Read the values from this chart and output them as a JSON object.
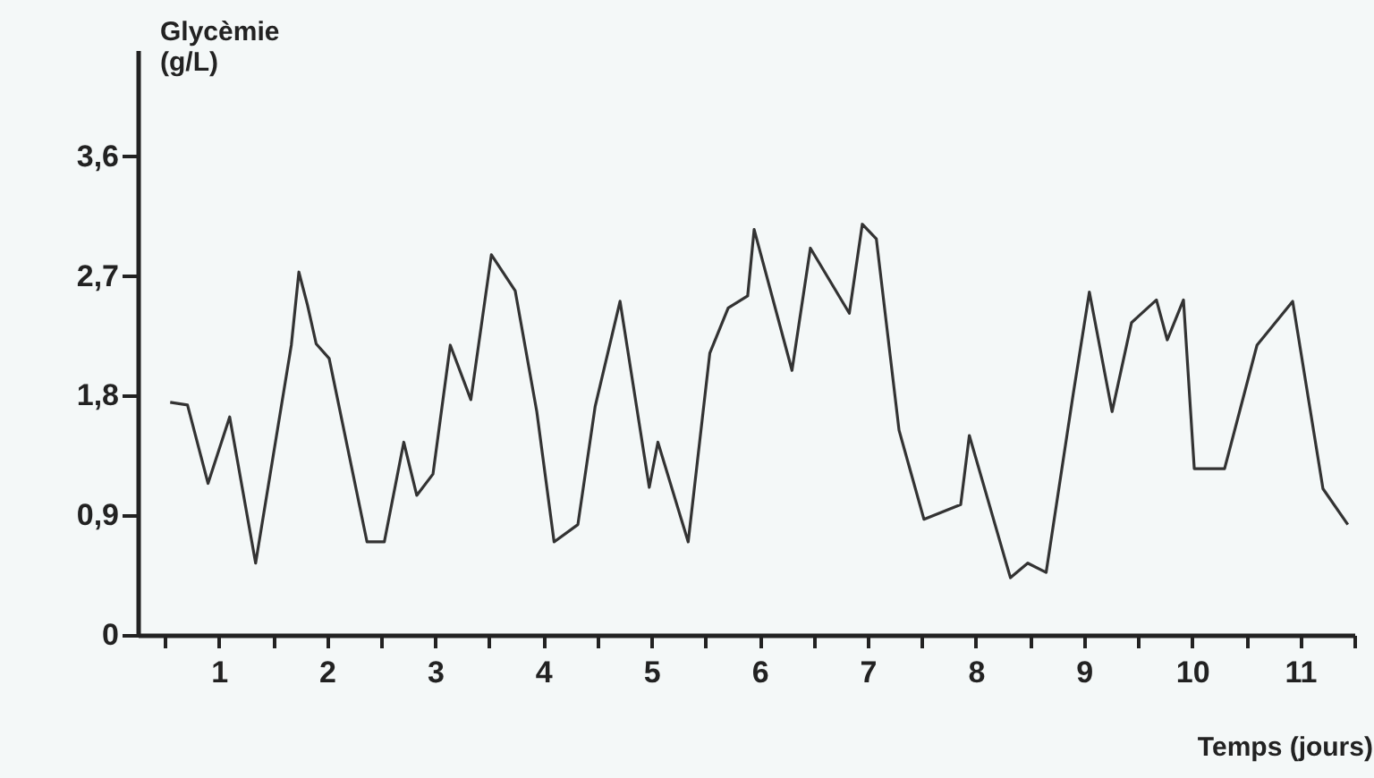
{
  "chart_data": {
    "type": "line",
    "xlabel": "Temps (jours)",
    "ylabel": "Glycèmie (g/L)",
    "x": [
      0.05,
      0.21,
      0.4,
      0.6,
      0.84,
      1.17,
      1.24,
      1.32,
      1.4,
      1.52,
      1.87,
      2.03,
      2.21,
      2.33,
      2.48,
      2.64,
      2.83,
      3.02,
      3.24,
      3.44,
      3.6,
      3.82,
      3.98,
      4.21,
      4.48,
      4.56,
      4.84,
      5.04,
      5.21,
      5.39,
      5.45,
      5.8,
      5.97,
      6.33,
      6.45,
      6.58,
      6.79,
      7.02,
      7.36,
      7.44,
      7.82,
      7.98,
      8.15,
      8.4,
      8.55,
      8.76,
      8.94,
      9.17,
      9.27,
      9.42,
      9.52,
      9.8,
      10.1,
      10.43,
      10.71,
      10.94
    ],
    "series": [
      {
        "color": "#333333",
        "values": [
          1.75,
          1.73,
          1.14,
          1.64,
          0.54,
          2.18,
          2.73,
          2.48,
          2.19,
          2.08,
          0.7,
          0.7,
          1.45,
          1.05,
          1.21,
          2.18,
          1.77,
          2.86,
          2.59,
          1.68,
          0.7,
          0.83,
          1.72,
          2.51,
          1.11,
          1.45,
          0.7,
          2.12,
          2.46,
          2.55,
          3.05,
          1.99,
          2.91,
          2.42,
          3.09,
          2.98,
          1.54,
          0.87,
          0.98,
          1.5,
          0.43,
          0.54,
          0.47,
          1.81,
          2.58,
          1.68,
          2.35,
          2.52,
          2.22,
          2.52,
          1.25,
          1.25,
          2.18,
          2.51,
          1.1,
          0.83
        ]
      }
    ],
    "xlim": [
      -0.25,
      11
    ],
    "ylim": [
      0,
      4.4
    ],
    "xticks": [
      {
        "value": 0,
        "label": null
      },
      {
        "value": 0.5,
        "label": "1"
      },
      {
        "value": 1,
        "label": null
      },
      {
        "value": 1.5,
        "label": "2"
      },
      {
        "value": 2,
        "label": null
      },
      {
        "value": 2.5,
        "label": "3"
      },
      {
        "value": 3,
        "label": null
      },
      {
        "value": 3.5,
        "label": "4"
      },
      {
        "value": 4,
        "label": null
      },
      {
        "value": 4.5,
        "label": "5"
      },
      {
        "value": 5,
        "label": null
      },
      {
        "value": 5.5,
        "label": "6"
      },
      {
        "value": 6,
        "label": null
      },
      {
        "value": 6.5,
        "label": "7"
      },
      {
        "value": 7,
        "label": null
      },
      {
        "value": 7.5,
        "label": "8"
      },
      {
        "value": 8,
        "label": null
      },
      {
        "value": 8.5,
        "label": "9"
      },
      {
        "value": 9,
        "label": null
      },
      {
        "value": 9.5,
        "label": "10"
      },
      {
        "value": 10,
        "label": null
      },
      {
        "value": 10.5,
        "label": "11"
      },
      {
        "value": 11,
        "label": null
      }
    ],
    "yticks": [
      0,
      {
        "value": 0.9,
        "label": "0,9"
      },
      {
        "value": 1.8,
        "label": "1,8"
      },
      {
        "value": 2.7,
        "label": "2,7"
      },
      {
        "value": 3.6,
        "label": "3,6"
      }
    ],
    "grid": false,
    "marker": "none",
    "line_style": "solid"
  }
}
